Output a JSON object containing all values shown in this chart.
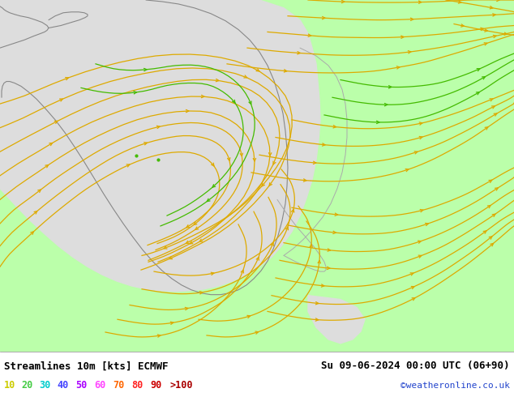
{
  "title_left": "Streamlines 10m [kts] ECMWF",
  "title_right": "Su 09-06-2024 00:00 UTC (06+90)",
  "credit": "©weatheronline.co.uk",
  "legend_values": [
    "10",
    "20",
    "30",
    "40",
    "50",
    "60",
    "70",
    "80",
    "90",
    ">100"
  ],
  "legend_colors": [
    "#cccc00",
    "#44cc44",
    "#00cccc",
    "#4444ff",
    "#aa00ff",
    "#ff44ff",
    "#ff6600",
    "#ff2222",
    "#cc0000",
    "#aa0000"
  ],
  "bg_color": "#bbffaa",
  "sea_color": "#dddddd",
  "coast_color": "#888888",
  "stream_color_yellow": "#ddaa00",
  "stream_color_green": "#44bb00",
  "text_color": "#000000",
  "bottom_bg": "#ffffff",
  "fig_width": 6.34,
  "fig_height": 4.9,
  "dpi": 100
}
